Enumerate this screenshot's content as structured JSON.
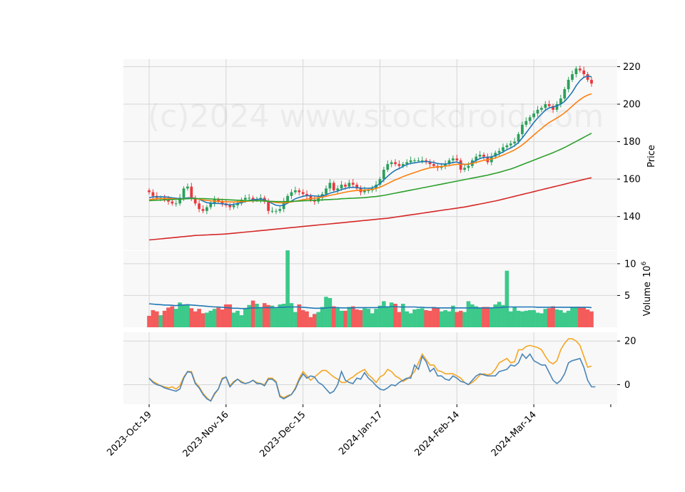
{
  "watermark": "(c)2024 www.stockdroid.com",
  "chart_data": [
    {
      "type": "candlestick",
      "panel": "price",
      "ylabel": "Price",
      "ylim": [
        122,
        224
      ],
      "yticks": [
        140,
        160,
        180,
        200,
        220
      ],
      "grid": true,
      "x_start": "2023-10-19",
      "x_end": "2024-04-18",
      "x_tick_labels": [
        "2023-Oct-19",
        "2023-Nov-16",
        "2023-Dec-15",
        "2024-Jan-17",
        "2024-Feb-14",
        "2024-Mar-14"
      ],
      "x_tick_index": [
        0,
        20,
        40,
        60,
        80,
        100
      ],
      "up_color": "#2ca05a",
      "down_color": "#e8393f",
      "close": [
        153,
        151,
        150,
        150,
        149,
        148,
        147,
        147,
        150,
        155,
        156,
        150,
        147,
        144,
        143,
        145,
        147,
        149,
        148,
        147,
        146,
        145,
        146,
        147,
        149,
        150,
        150,
        149,
        149,
        150,
        148,
        143,
        143,
        143,
        144,
        148,
        151,
        153,
        154,
        153,
        152,
        151,
        149,
        148,
        150,
        152,
        155,
        158,
        154,
        155,
        157,
        156,
        158,
        157,
        155,
        153,
        154,
        154,
        155,
        157,
        160,
        165,
        168,
        169,
        168,
        167,
        168,
        169,
        170,
        170,
        170,
        170,
        169,
        168,
        167,
        166,
        167,
        168,
        170,
        171,
        170,
        165,
        166,
        167,
        170,
        172,
        173,
        172,
        169,
        172,
        174,
        175,
        177,
        178,
        179,
        180,
        184,
        189,
        191,
        193,
        195,
        197,
        198,
        200,
        199,
        197,
        200,
        203,
        208,
        213,
        216,
        219,
        218,
        216,
        213,
        211
      ],
      "moving_averages": [
        {
          "color": "#1f77b4",
          "values": [
            150,
            150.5,
            150.6,
            150.6,
            150.5,
            150.3,
            150,
            149.8,
            149.6,
            149.6,
            150,
            150,
            149.8,
            149.2,
            148.3,
            147.4,
            147.2,
            147,
            147,
            146.8,
            146.6,
            146.2,
            146.5,
            147,
            147.5,
            148,
            148.6,
            149,
            149.2,
            149.3,
            149,
            148,
            147,
            146,
            145.8,
            146,
            147.2,
            148.3,
            149.5,
            150.2,
            150.8,
            151.2,
            151.2,
            151,
            150.8,
            151,
            151.6,
            152.5,
            153,
            153.6,
            154.4,
            155,
            155.5,
            155.6,
            155.5,
            155.2,
            155.1,
            155.1,
            155.3,
            156.2,
            157.6,
            159.6,
            161.5,
            163.3,
            164.7,
            165.6,
            166.8,
            167.8,
            168.4,
            168.7,
            169,
            169.3,
            169.4,
            169.2,
            168.8,
            168.3,
            168,
            168,
            168.4,
            168.9,
            169.1,
            168.3,
            167.8,
            167.8,
            168.8,
            169.9,
            171,
            171.6,
            171.6,
            171.9,
            172.6,
            173.4,
            174.5,
            175.7,
            176.6,
            177.8,
            179.5,
            182,
            184.6,
            187.4,
            190.2,
            192.6,
            194.7,
            196.8,
            198,
            198.5,
            199.1,
            200,
            201.5,
            203.8,
            206.4,
            209.8,
            212.5,
            214.3,
            215,
            214.6
          ]
        },
        {
          "color": "#ff7f0e",
          "values": [
            149,
            149.3,
            149.5,
            149.6,
            149.6,
            149.6,
            149.5,
            149.4,
            149.3,
            149.4,
            149.6,
            149.7,
            149.6,
            149.3,
            148.9,
            148.6,
            148.4,
            148.2,
            148.1,
            148,
            147.9,
            147.8,
            147.8,
            147.9,
            148,
            148.1,
            148.3,
            148.4,
            148.5,
            148.5,
            148.4,
            148.1,
            147.8,
            147.5,
            147.3,
            147.3,
            147.5,
            147.8,
            148.2,
            148.6,
            149,
            149.3,
            149.6,
            149.8,
            150.1,
            150.4,
            150.8,
            151.3,
            151.7,
            152.1,
            152.6,
            153,
            153.4,
            153.7,
            153.9,
            154,
            154.1,
            154.3,
            154.5,
            155,
            155.7,
            156.6,
            157.6,
            158.6,
            159.6,
            160.4,
            161.3,
            162.1,
            162.8,
            163.5,
            164.2,
            164.9,
            165.5,
            166,
            166.3,
            166.5,
            166.7,
            166.9,
            167.2,
            167.6,
            167.9,
            167.9,
            167.9,
            168,
            168.4,
            168.9,
            169.5,
            170,
            170.3,
            170.7,
            171.3,
            172,
            172.8,
            173.7,
            174.6,
            175.6,
            176.8,
            178.3,
            179.9,
            181.7,
            183.5,
            185.3,
            187,
            188.7,
            190.2,
            191.4,
            192.6,
            193.9,
            195.4,
            197.1,
            198.9,
            200.8,
            202.4,
            203.8,
            204.8,
            205.5
          ]
        },
        {
          "color": "#2ca02c",
          "values": [
            148.5,
            148.6,
            148.7,
            148.8,
            148.9,
            149,
            149.1,
            149.2,
            149.3,
            149.4,
            149.5,
            149.6,
            149.6,
            149.6,
            149.6,
            149.5,
            149.4,
            149.3,
            149.2,
            149.1,
            149,
            148.9,
            148.8,
            148.7,
            148.6,
            148.5,
            148.5,
            148.4,
            148.4,
            148.4,
            148.3,
            148.2,
            148.1,
            148,
            148,
            148,
            148,
            148.1,
            148.2,
            148.3,
            148.4,
            148.5,
            148.6,
            148.7,
            148.8,
            148.9,
            149,
            149.1,
            149.2,
            149.3,
            149.5,
            149.6,
            149.7,
            149.8,
            149.9,
            150,
            150.1,
            150.3,
            150.5,
            150.7,
            151,
            151.3,
            151.7,
            152.1,
            152.5,
            152.9,
            153.3,
            153.7,
            154.1,
            154.5,
            154.9,
            155.3,
            155.7,
            156.1,
            156.5,
            156.9,
            157.3,
            157.7,
            158.1,
            158.5,
            158.9,
            159.3,
            159.7,
            160.1,
            160.5,
            160.9,
            161.3,
            161.7,
            162.1,
            162.6,
            163.1,
            163.6,
            164.2,
            164.8,
            165.4,
            166.1,
            166.9,
            167.7,
            168.5,
            169.3,
            170.1,
            170.9,
            171.7,
            172.5,
            173.3,
            174.1,
            175,
            175.9,
            176.9,
            177.9,
            179,
            180.1,
            181.2,
            182.3,
            183.4,
            184.5
          ]
        },
        {
          "color": "#d62728",
          "values": [
            127.5,
            127.7,
            127.9,
            128.1,
            128.3,
            128.5,
            128.7,
            128.9,
            129.1,
            129.3,
            129.5,
            129.7,
            129.9,
            130,
            130.1,
            130.2,
            130.3,
            130.4,
            130.5,
            130.6,
            130.7,
            130.9,
            131.1,
            131.3,
            131.5,
            131.7,
            131.9,
            132.1,
            132.3,
            132.5,
            132.7,
            132.9,
            133.1,
            133.3,
            133.5,
            133.7,
            133.9,
            134.1,
            134.3,
            134.5,
            134.7,
            134.9,
            135.1,
            135.3,
            135.5,
            135.7,
            135.9,
            136.1,
            136.3,
            136.5,
            136.7,
            136.9,
            137.1,
            137.3,
            137.5,
            137.7,
            137.9,
            138.1,
            138.3,
            138.5,
            138.7,
            138.9,
            139.1,
            139.4,
            139.7,
            140,
            140.3,
            140.6,
            140.9,
            141.2,
            141.5,
            141.8,
            142.1,
            142.4,
            142.7,
            143,
            143.3,
            143.6,
            143.9,
            144.2,
            144.5,
            144.8,
            145.1,
            145.5,
            145.9,
            146.3,
            146.7,
            147.1,
            147.5,
            147.9,
            148.3,
            148.8,
            149.3,
            149.8,
            150.3,
            150.8,
            151.3,
            151.8,
            152.3,
            152.8,
            153.3,
            153.8,
            154.3,
            154.8,
            155.3,
            155.8,
            156.3,
            156.8,
            157.3,
            157.8,
            158.3,
            158.8,
            159.3,
            159.8,
            160.3,
            160.7
          ]
        }
      ]
    },
    {
      "type": "bar",
      "panel": "volume",
      "ylabel": "Volume",
      "scale_label": "10",
      "scale_exponent": "6",
      "ylim": [
        0,
        12
      ],
      "yticks": [
        5,
        10
      ],
      "values": [
        1.8,
        2.7,
        2.5,
        1.9,
        2.6,
        3.1,
        3.3,
        2.9,
        3.9,
        3.6,
        3.5,
        3,
        2.5,
        2.9,
        2.2,
        2.3,
        2.6,
        2.9,
        3.1,
        2.8,
        3.6,
        3.6,
        2.3,
        2.6,
        1.9,
        2.9,
        3.5,
        4.2,
        3.7,
        3.1,
        3.8,
        3.5,
        3.4,
        3,
        3.6,
        3.7,
        12.1,
        3.8,
        2.4,
        3.6,
        2.7,
        2.5,
        1.6,
        2.1,
        2.4,
        3.2,
        4.8,
        4.6,
        3.3,
        3,
        2.6,
        2.6,
        3.2,
        3.3,
        2.8,
        2.7,
        3,
        2.9,
        2.2,
        2.9,
        3.4,
        4.1,
        3.3,
        3.9,
        3.7,
        2.4,
        3.7,
        2.5,
        2.2,
        2.8,
        2.9,
        3,
        2.7,
        2.6,
        3.2,
        3,
        2.5,
        2.7,
        2.5,
        3.4,
        2.4,
        2.6,
        2.4,
        4.1,
        3.6,
        3.3,
        3.1,
        3.2,
        3.2,
        3,
        3.6,
        4,
        3.5,
        8.9,
        2.5,
        3.2,
        2.6,
        2.5,
        2.6,
        2.7,
        2.7,
        2.3,
        2.2,
        2.9,
        3,
        3.3,
        2.8,
        2.7,
        2.3,
        2.6,
        3.1,
        3.2,
        3.2,
        3.1,
        2.8,
        2.5
      ],
      "average": {
        "color": "#1f77b4",
        "values": [
          3.7,
          3.65,
          3.6,
          3.55,
          3.5,
          3.5,
          3.45,
          3.4,
          3.5,
          3.5,
          3.55,
          3.5,
          3.45,
          3.4,
          3.35,
          3.3,
          3.25,
          3.2,
          3.2,
          3.15,
          3.1,
          3.05,
          3,
          3,
          2.95,
          2.95,
          3,
          3.05,
          3.05,
          3.1,
          3.1,
          3.1,
          3.1,
          3.1,
          3.15,
          3.15,
          3.2,
          3.2,
          3.2,
          3.2,
          3.15,
          3.1,
          3.05,
          3,
          3,
          3,
          3.05,
          3.1,
          3.1,
          3.1,
          3.05,
          3.05,
          3.05,
          3.05,
          3.1,
          3.1,
          3.1,
          3.1,
          3.1,
          3.1,
          3.15,
          3.2,
          3.2,
          3.25,
          3.25,
          3.2,
          3.2,
          3.2,
          3.2,
          3.2,
          3.15,
          3.15,
          3.1,
          3.1,
          3.1,
          3.05,
          3.05,
          3.05,
          3.05,
          3.05,
          3.05,
          3.05,
          3.05,
          3.05,
          3.05,
          3.05,
          3.05,
          3.05,
          3.05,
          3.05,
          3.1,
          3.1,
          3.15,
          3.2,
          3.2,
          3.2,
          3.2,
          3.2,
          3.2,
          3.2,
          3.2,
          3.15,
          3.15,
          3.15,
          3.15,
          3.15,
          3.15,
          3.15,
          3.15,
          3.15,
          3.15,
          3.15,
          3.15,
          3.15,
          3.15,
          3.1
        ]
      }
    },
    {
      "type": "line",
      "panel": "oscillator",
      "ylim": [
        -9,
        24
      ],
      "yticks": [
        0,
        20
      ],
      "series": [
        {
          "color": "#f5a623",
          "values": [
            3,
            1.5,
            0.5,
            -0.5,
            -1,
            -1.5,
            -1,
            -2,
            -0.5,
            3.5,
            6,
            6,
            1,
            -1,
            -4,
            -6,
            -7.5,
            -4.5,
            -2,
            3,
            3.5,
            -0.5,
            1.5,
            2.5,
            1.5,
            0.5,
            1,
            2,
            1,
            0.5,
            0,
            3,
            3,
            1.5,
            -5,
            -6,
            -5,
            -4.5,
            -1.5,
            3,
            6,
            4,
            2,
            3.5,
            5,
            6.5,
            6.5,
            5,
            3.5,
            2.5,
            1,
            1,
            2.5,
            3.5,
            5,
            6,
            7,
            4.5,
            3,
            1,
            3.5,
            4.5,
            7,
            6,
            4,
            3,
            1.5,
            2.5,
            4,
            6,
            10,
            14,
            11.5,
            9,
            9,
            6.5,
            6,
            5,
            5,
            5,
            4,
            3,
            1,
            0,
            1,
            2.5,
            4.5,
            5,
            4.5,
            5,
            7,
            10,
            11,
            12,
            10,
            10.5,
            16,
            16,
            17.5,
            18,
            17.5,
            17,
            16,
            13,
            10.5,
            9.5,
            11,
            16,
            19,
            21,
            21,
            20,
            18,
            13,
            8,
            8.5
          ]
        },
        {
          "color": "#4a85b8",
          "values": [
            3,
            1,
            0,
            -0.5,
            -1.5,
            -2,
            -2.5,
            -3,
            -2,
            3,
            6,
            5.5,
            0.5,
            -1.5,
            -4.5,
            -6.5,
            -7.5,
            -4,
            -2,
            2.5,
            3.5,
            -1,
            1,
            2.5,
            1,
            0.5,
            1,
            2,
            0.5,
            0.5,
            -0.5,
            2.5,
            2.5,
            1,
            -5.5,
            -6.5,
            -5.5,
            -4.5,
            -2,
            2,
            5,
            3,
            4,
            3.5,
            1,
            0,
            -2,
            -4,
            -3,
            0,
            6,
            2,
            1,
            0.5,
            3,
            2.5,
            5.5,
            3,
            1.5,
            -0.5,
            -2,
            -2.5,
            -1.5,
            0,
            -0.5,
            1,
            2,
            3,
            3,
            9,
            7,
            13,
            10.5,
            6,
            7.5,
            4,
            4,
            2.5,
            2,
            4,
            3,
            1.5,
            1,
            0,
            2,
            4,
            5,
            4.5,
            4,
            4,
            4,
            6,
            6.5,
            7,
            9,
            8.5,
            10,
            14,
            12,
            14,
            11,
            10,
            9,
            9,
            5.5,
            2,
            0.5,
            2,
            5,
            10,
            11,
            11.5,
            12,
            8,
            2,
            -1,
            -1
          ]
        }
      ]
    }
  ]
}
